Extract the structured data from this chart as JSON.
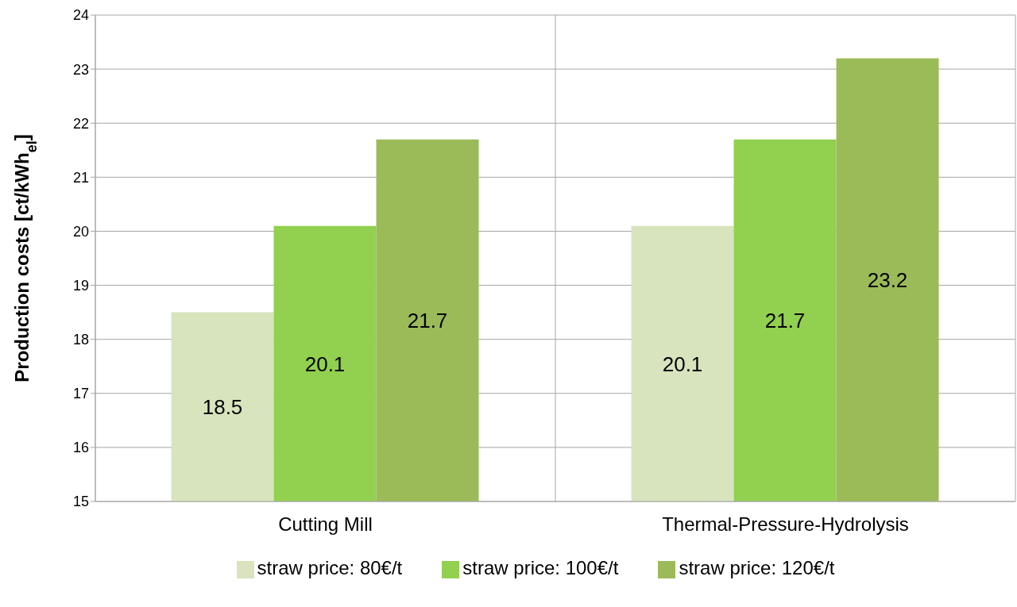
{
  "chart_data": {
    "type": "bar",
    "ylabel": "Production costs [ct/kWh$_{el}$]",
    "categories": [
      "Cutting Mill",
      "Thermal-Pressure-Hydrolysis"
    ],
    "series": [
      {
        "name": "straw price: 80€/t",
        "color": "#d7e4bd",
        "values": [
          18.5,
          20.1
        ]
      },
      {
        "name": "straw price: 100€/t",
        "color": "#92d050",
        "values": [
          20.1,
          21.7
        ]
      },
      {
        "name": "straw price: 120€/t",
        "color": "#9bbb59",
        "values": [
          21.7,
          23.2
        ]
      }
    ],
    "ylim": [
      15,
      24
    ],
    "yticks": [
      15,
      16,
      17,
      18,
      19,
      20,
      21,
      22,
      23,
      24
    ],
    "grid": true,
    "legend": "bottom",
    "data_labels": true
  }
}
